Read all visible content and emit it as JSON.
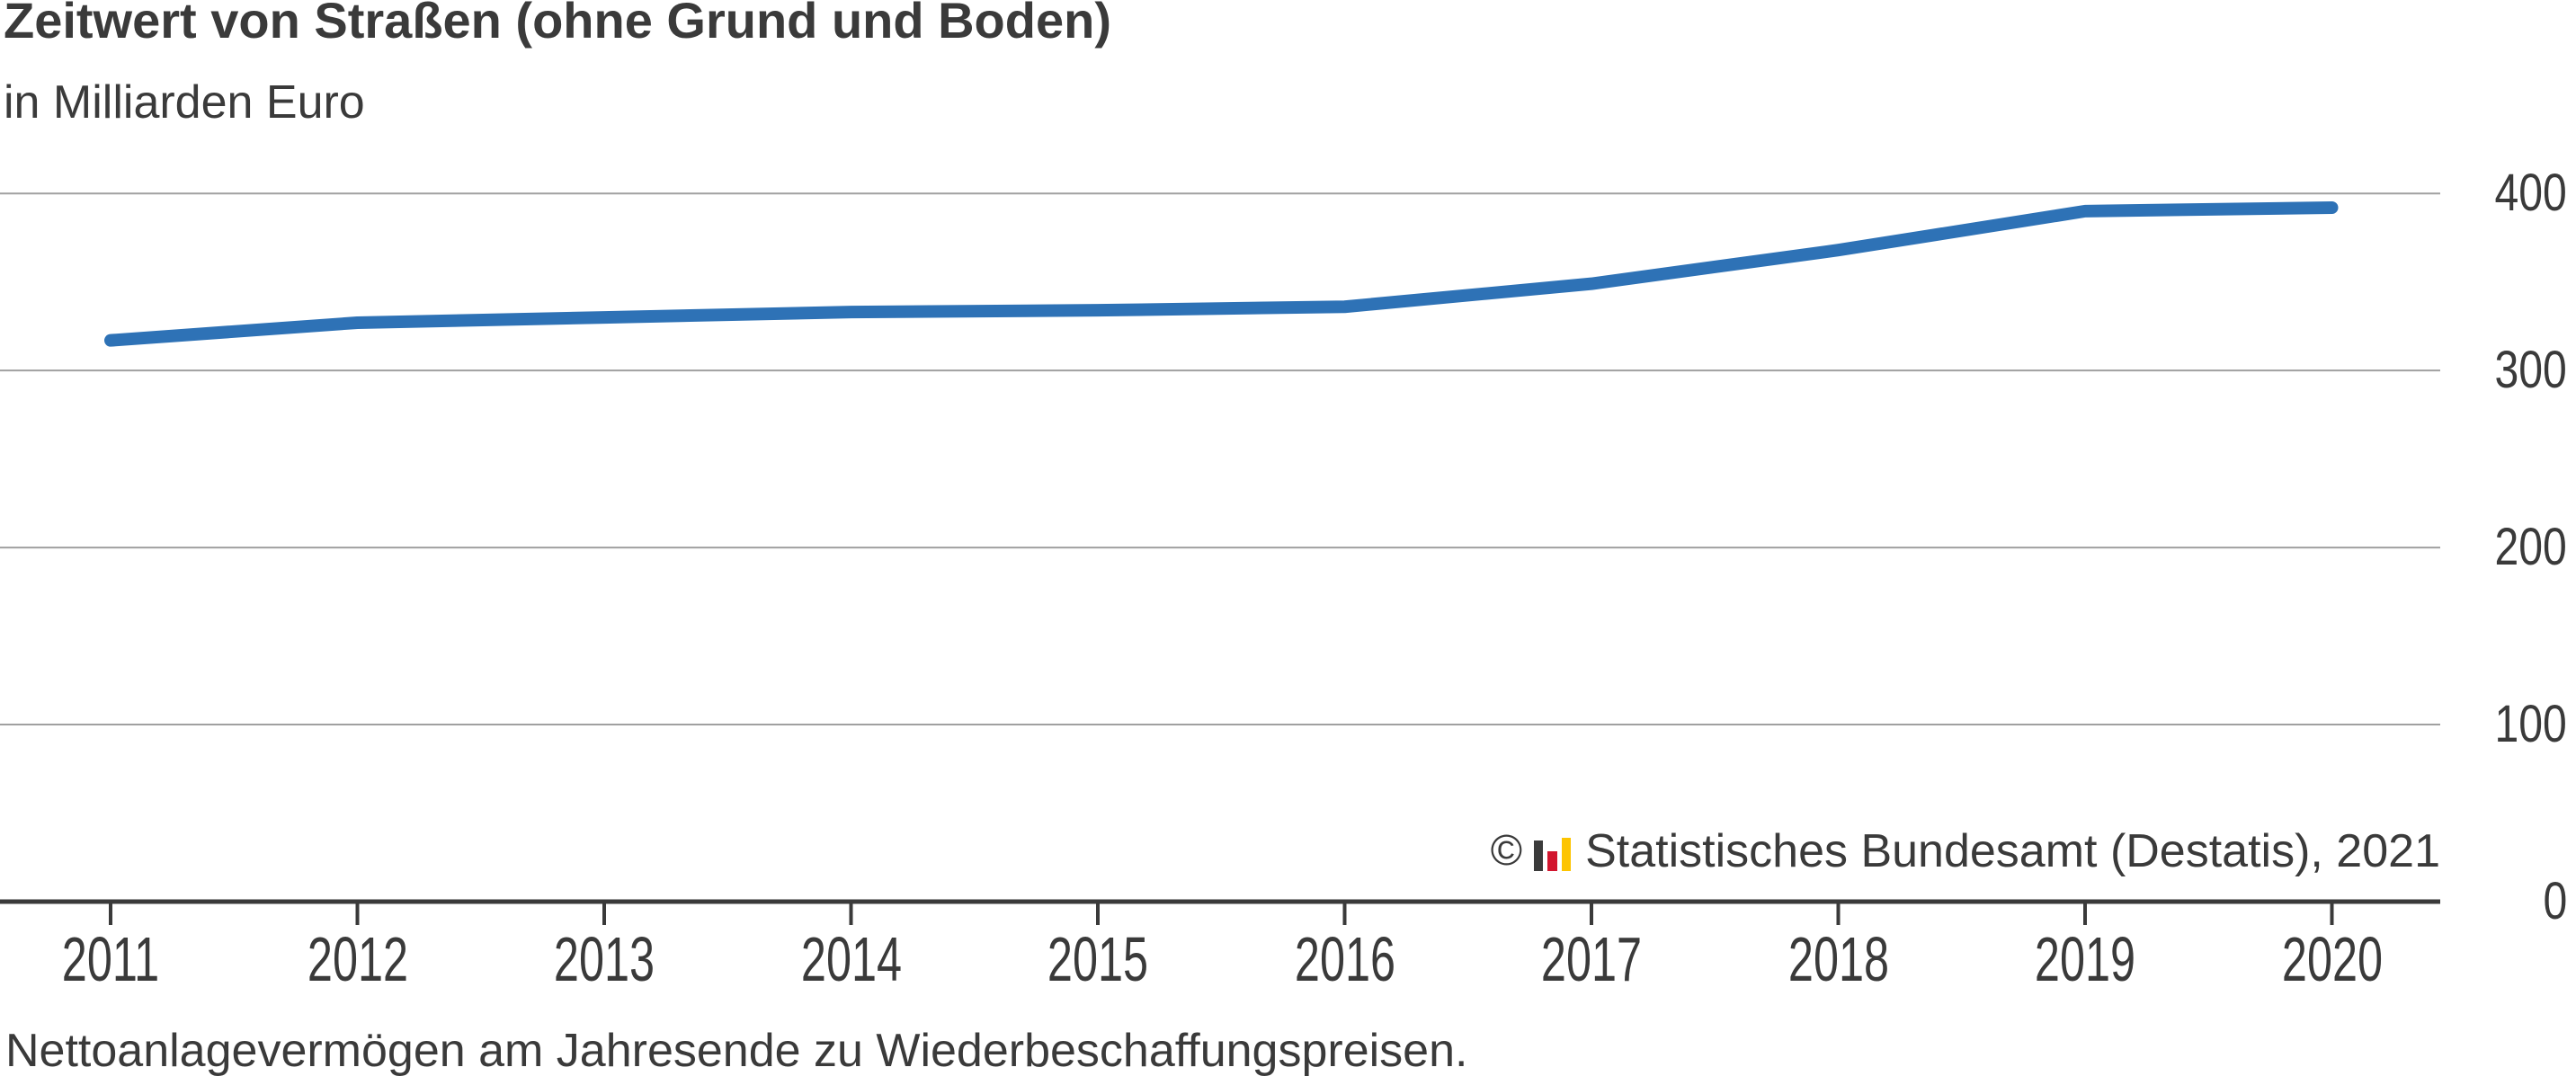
{
  "header": {
    "title": "Zeitwert von Straßen (ohne Grund und Boden)",
    "subtitle": "in Milliarden Euro"
  },
  "source": {
    "copyright_symbol": "©",
    "label": "Statistisches Bundesamt (Destatis), 2021",
    "logo_icon": "destatis-bar-chart-logo"
  },
  "footnote": "Nettoanlagevermögen am Jahresende zu Wiederbeschaffungspreisen.",
  "colors": {
    "line": "#2e72b6",
    "grid": "#a0a0a0",
    "axis": "#3a3a3a",
    "text": "#3a3a3a",
    "logo_black": "#3b3b3b",
    "logo_red": "#d2152e",
    "logo_yellow": "#fdc400",
    "logo_gray": "#b2b2b2"
  },
  "chart_data": {
    "type": "line",
    "title": "Zeitwert von Straßen (ohne Grund und Boden)",
    "ylabel": "in Milliarden Euro",
    "x": [
      2011,
      2012,
      2013,
      2014,
      2015,
      2016,
      2017,
      2018,
      2019,
      2020
    ],
    "series": [
      {
        "name": "Zeitwert von Straßen (ohne Grund und Boden)",
        "values": [
          317,
          327,
          330,
          333,
          334,
          336,
          349,
          368,
          390,
          392
        ]
      }
    ],
    "ylim": [
      0,
      400
    ],
    "yticks": [
      0,
      100,
      200,
      300,
      400
    ],
    "grid": true,
    "legend": "none",
    "y_axis_side": "right"
  }
}
